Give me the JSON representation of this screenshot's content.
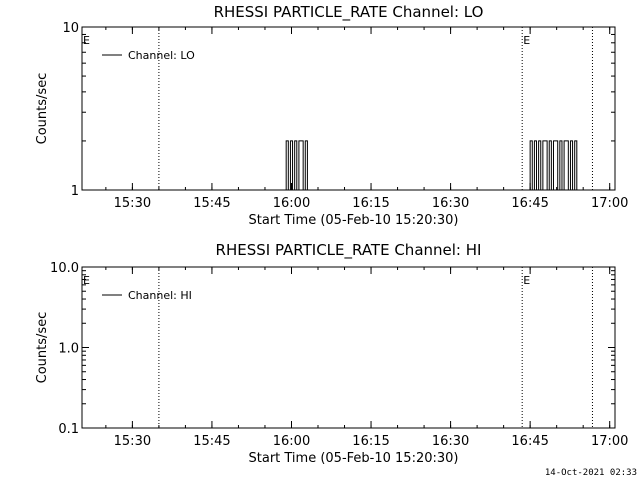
{
  "footer": {
    "timestamp": "14-Oct-2021 02:33"
  },
  "chart_data": [
    {
      "type": "line",
      "title": "RHESSI PARTICLE_RATE Channel: LO",
      "xlabel": "Start Time (05-Feb-10 15:20:30)",
      "ylabel": "Counts/sec",
      "yscale": "log",
      "ylim": [
        1,
        10
      ],
      "y_ticks": [
        {
          "v": 1,
          "label": "1"
        },
        {
          "v": 10,
          "label": "10"
        }
      ],
      "xlim": [
        "15:20:30",
        "17:01:00"
      ],
      "x_ticks": [
        "15:30",
        "15:45",
        "16:00",
        "16:15",
        "16:30",
        "16:45",
        "17:00"
      ],
      "legend": {
        "label": "Channel: LO",
        "placement": "top-left"
      },
      "grid": false,
      "vlines": [
        {
          "x": "15:20:30",
          "label": "E"
        },
        {
          "x": "15:35:00",
          "label": ""
        },
        {
          "x": "16:43:30",
          "label": "E"
        },
        {
          "x": "16:56:45",
          "label": ""
        }
      ],
      "series": [
        {
          "x": [
            "15:58:48",
            "15:59:12",
            "15:59:36",
            "16:00:00",
            "16:00:24",
            "16:00:48",
            "16:01:12",
            "16:01:36",
            "16:02:00",
            "16:02:24",
            "16:02:48",
            "16:03:12",
            "16:44:48",
            "16:45:12",
            "16:45:36",
            "16:46:00",
            "16:46:24",
            "16:46:48",
            "16:47:12",
            "16:47:36",
            "16:48:00",
            "16:48:24",
            "16:48:48",
            "16:49:12",
            "16:49:36",
            "16:50:00",
            "16:50:24",
            "16:50:48",
            "16:51:12",
            "16:51:36",
            "16:52:00",
            "16:52:24",
            "16:52:48",
            "16:53:12",
            "16:53:36",
            "16:54:00"
          ],
          "values": [
            1,
            2,
            1,
            2,
            1,
            2,
            1,
            2,
            2,
            1,
            2,
            1,
            1,
            2,
            1,
            2,
            1,
            2,
            1,
            2,
            2,
            1,
            2,
            1,
            2,
            2,
            1,
            2,
            1,
            2,
            2,
            1,
            2,
            1,
            2,
            1
          ]
        }
      ]
    },
    {
      "type": "line",
      "title": "RHESSI PARTICLE_RATE Channel: HI",
      "xlabel": "Start Time (05-Feb-10 15:20:30)",
      "ylabel": "Counts/sec",
      "yscale": "log",
      "ylim": [
        0.1,
        10
      ],
      "y_ticks": [
        {
          "v": 0.1,
          "label": "0.1"
        },
        {
          "v": 1,
          "label": "1.0"
        },
        {
          "v": 10,
          "label": "10.0"
        }
      ],
      "xlim": [
        "15:20:30",
        "17:01:00"
      ],
      "x_ticks": [
        "15:30",
        "15:45",
        "16:00",
        "16:15",
        "16:30",
        "16:45",
        "17:00"
      ],
      "legend": {
        "label": "Channel: HI",
        "placement": "top-left"
      },
      "grid": false,
      "vlines": [
        {
          "x": "15:20:30",
          "label": "E"
        },
        {
          "x": "15:35:00",
          "label": ""
        },
        {
          "x": "16:43:30",
          "label": "E"
        },
        {
          "x": "16:56:45",
          "label": ""
        }
      ],
      "series": [
        {
          "x": [],
          "values": []
        }
      ]
    }
  ]
}
